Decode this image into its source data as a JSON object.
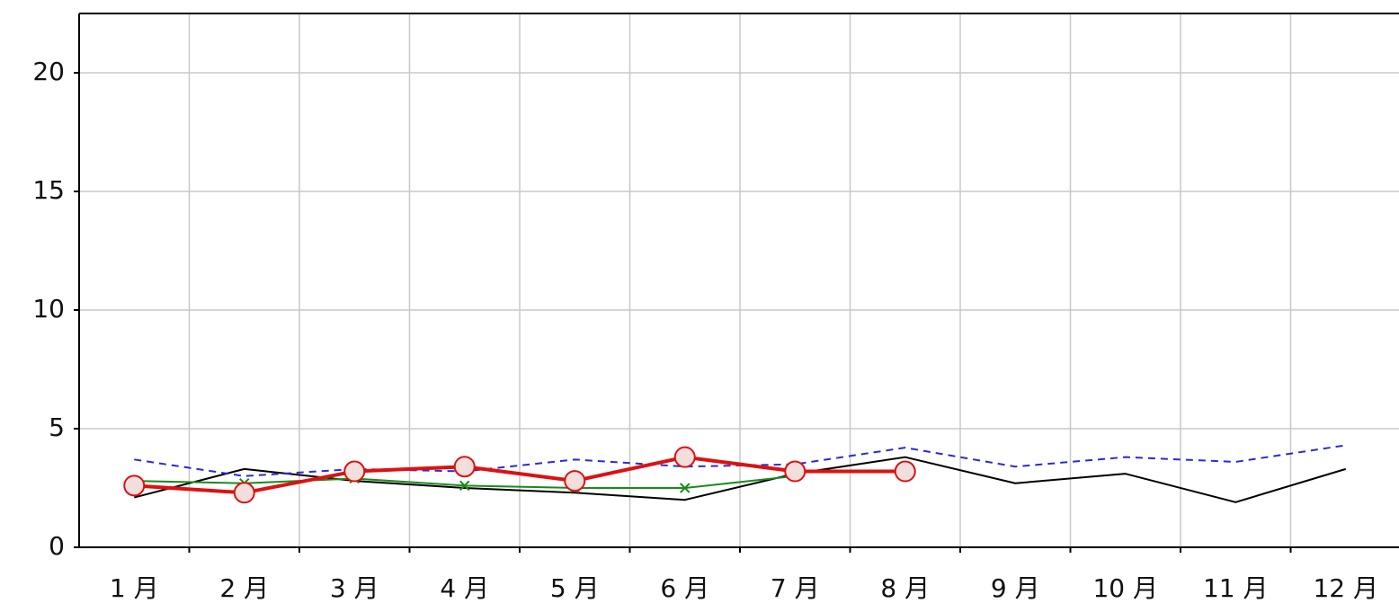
{
  "chart_data": {
    "type": "line",
    "categories": [
      "1 月",
      "2 月",
      "3 月",
      "4 月",
      "5 月",
      "6 月",
      "7 月",
      "8 月",
      "9 月",
      "10 月",
      "11 月",
      "12 月"
    ],
    "series": [
      {
        "color": "#000000",
        "style": "solid",
        "width": 2,
        "marker": "none",
        "values": [
          2.1,
          3.3,
          2.8,
          2.5,
          2.3,
          2.0,
          3.1,
          3.8,
          2.7,
          3.1,
          1.9,
          3.3
        ]
      },
      {
        "color": "#2b2bd6",
        "style": "dashed",
        "width": 2,
        "marker": "none",
        "values": [
          3.7,
          3.0,
          3.3,
          3.2,
          3.7,
          3.4,
          3.5,
          4.2,
          3.4,
          3.8,
          3.6,
          4.3
        ]
      },
      {
        "color": "#1a8a1a",
        "style": "solid",
        "width": 2,
        "marker": "x",
        "values": [
          2.8,
          2.7,
          2.9,
          2.6,
          2.5,
          2.5,
          3.0,
          null,
          null,
          null,
          null,
          null
        ]
      },
      {
        "color": "#dd1111",
        "style": "solid",
        "width": 4,
        "marker": "circle",
        "values": [
          2.6,
          2.3,
          3.2,
          3.4,
          2.8,
          3.8,
          3.2,
          3.2,
          null,
          null,
          null,
          null
        ]
      }
    ],
    "ylim": [
      0,
      22.5
    ],
    "yticks": [
      0,
      5,
      10,
      15,
      20
    ],
    "grid": true
  }
}
